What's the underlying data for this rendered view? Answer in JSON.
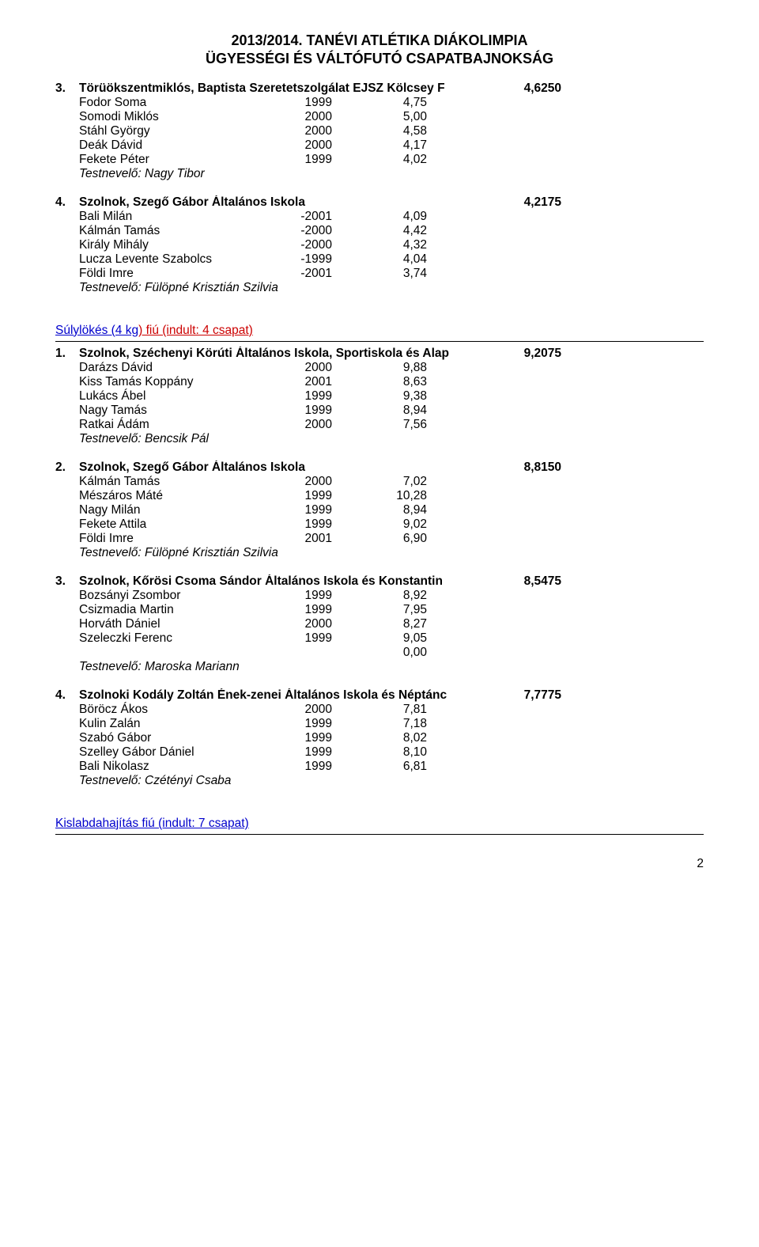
{
  "header": {
    "line1": "2013/2014. TANÉVI ATLÉTIKA DIÁKOLIMPIA",
    "line2": "ÜGYESSÉGI ÉS VÁLTÓFUTÓ CSAPATBAJNOKSÁG"
  },
  "top_blocks": [
    {
      "rank": "3.",
      "team": "Törüökszentmiklós, Baptista Szeretetszolgálat EJSZ Kölcsey F",
      "score": "4,6250",
      "rows": [
        {
          "name": "Fodor Soma",
          "year": "1999",
          "val": "4,75"
        },
        {
          "name": "Somodi Miklós",
          "year": "2000",
          "val": "5,00"
        },
        {
          "name": "Stáhl György",
          "year": "2000",
          "val": "4,58"
        },
        {
          "name": "Deák Dávid",
          "year": "2000",
          "val": "4,17"
        },
        {
          "name": "Fekete Péter",
          "year": "1999",
          "val": "4,02"
        }
      ],
      "coach": "Testnevelő: Nagy Tibor"
    },
    {
      "rank": "4.",
      "team": "Szolnok, Szegő Gábor Általános Iskola",
      "score": "4,2175",
      "rows": [
        {
          "name": "Bali Milán",
          "year": "-2001",
          "val": "4,09"
        },
        {
          "name": "Kálmán Tamás",
          "year": "-2000",
          "val": "4,42"
        },
        {
          "name": "Király Mihály",
          "year": "-2000",
          "val": "4,32"
        },
        {
          "name": "Lucza Levente Szabolcs",
          "year": "-1999",
          "val": "4,04"
        },
        {
          "name": "Földi Imre",
          "year": "-2001",
          "val": "3,74"
        }
      ],
      "coach": "Testnevelő: Fülöpné Krisztián Szilvia"
    }
  ],
  "section1": {
    "title_blue": "Súlylökés (4 kg",
    "title_red": ") fiú (indult: 4 csapat)"
  },
  "section1_blocks": [
    {
      "rank": "1.",
      "team": "Szolnok, Széchenyi Körúti Általános Iskola, Sportiskola és Alap",
      "score": "9,2075",
      "rows": [
        {
          "name": "Darázs Dávid",
          "year": "2000",
          "val": "9,88"
        },
        {
          "name": "Kiss Tamás Koppány",
          "year": "2001",
          "val": "8,63"
        },
        {
          "name": "Lukács Ábel",
          "year": "1999",
          "val": "9,38"
        },
        {
          "name": "Nagy Tamás",
          "year": "1999",
          "val": "8,94"
        },
        {
          "name": "Ratkai Ádám",
          "year": "2000",
          "val": "7,56"
        }
      ],
      "coach": "Testnevelő: Bencsik Pál"
    },
    {
      "rank": "2.",
      "team": "Szolnok, Szegő Gábor Általános Iskola",
      "score": "8,8150",
      "rows": [
        {
          "name": "Kálmán Tamás",
          "year": "2000",
          "val": "7,02"
        },
        {
          "name": "Mészáros Máté",
          "year": "1999",
          "val": "10,28"
        },
        {
          "name": "Nagy Milán",
          "year": "1999",
          "val": "8,94"
        },
        {
          "name": "Fekete Attila",
          "year": "1999",
          "val": "9,02"
        },
        {
          "name": "Földi Imre",
          "year": "2001",
          "val": "6,90"
        }
      ],
      "coach": "Testnevelő: Fülöpné Krisztián Szilvia"
    },
    {
      "rank": "3.",
      "team": "Szolnok, Kőrösi Csoma Sándor Általános Iskola és Konstantin",
      "score": "8,5475",
      "rows": [
        {
          "name": "Bozsányi Zsombor",
          "year": "1999",
          "val": "8,92"
        },
        {
          "name": "Csizmadia Martin",
          "year": "1999",
          "val": "7,95"
        },
        {
          "name": "Horváth Dániel",
          "year": "2000",
          "val": "8,27"
        },
        {
          "name": "Szeleczki Ferenc",
          "year": "1999",
          "val": "9,05"
        },
        {
          "name": "",
          "year": "",
          "val": "0,00"
        }
      ],
      "coach": "Testnevelő: Maroska Mariann"
    },
    {
      "rank": "4.",
      "team": "Szolnoki Kodály Zoltán Ének-zenei Általános Iskola és Néptánc",
      "score": "7,7775",
      "rows": [
        {
          "name": "Böröcz Ákos",
          "year": "2000",
          "val": "7,81"
        },
        {
          "name": "Kulin Zalán",
          "year": "1999",
          "val": "7,18"
        },
        {
          "name": "Szabó Gábor",
          "year": "1999",
          "val": "8,02"
        },
        {
          "name": "Szelley Gábor Dániel",
          "year": "1999",
          "val": "8,10"
        },
        {
          "name": "Bali Nikolasz",
          "year": "1999",
          "val": "6,81"
        }
      ],
      "coach": "Testnevelő: Czétényi Csaba"
    }
  ],
  "section2": {
    "title": "Kislabdahajítás fiú (indult: 7 csapat)"
  },
  "page_num": "2"
}
